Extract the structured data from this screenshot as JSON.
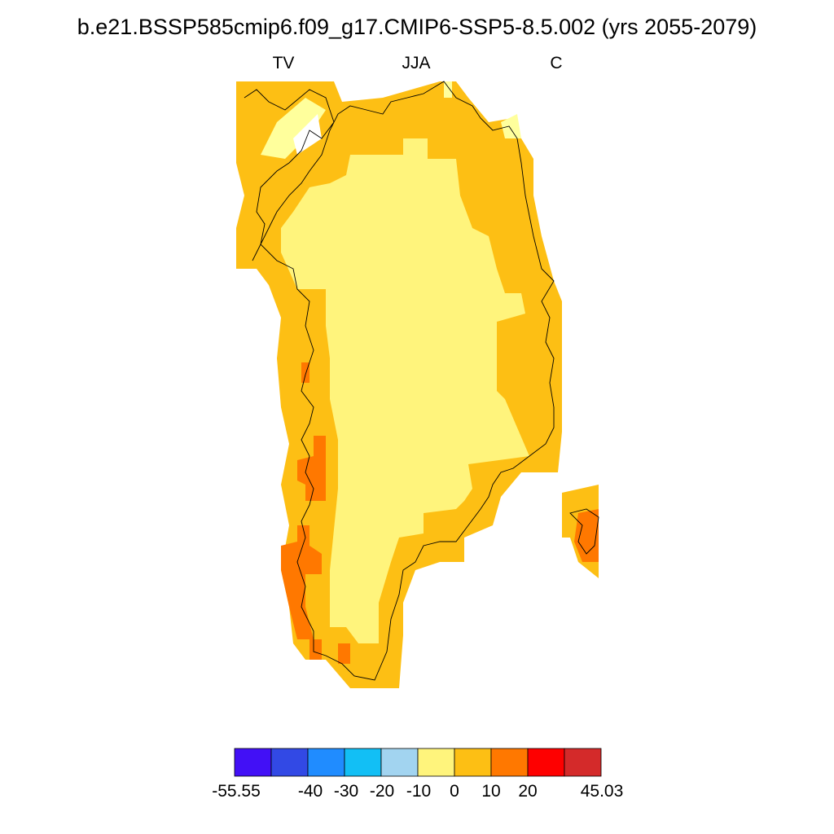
{
  "title": "b.e21.BSSP585cmip6.f09_g17.CMIP6-SSP5-8.5.002 (yrs 2055-2079)",
  "subtitle_left": "TV",
  "subtitle_center": "JJA",
  "subtitle_right": "C",
  "colors": {
    "outer_land": "#fdbf14",
    "interior": "#fff47c",
    "warm": "#ff7800",
    "light": "#ffff9c",
    "coast": "#000000"
  },
  "colorbar": {
    "colors": [
      "#4210f6",
      "#3249e5",
      "#208cff",
      "#12bff5",
      "#a2d4f0",
      "#fff47c",
      "#fdbf14",
      "#ff7800",
      "#fe0000",
      "#d42a2a"
    ],
    "labels": [
      "-55.55",
      "-40",
      "-30",
      "-20",
      "-10",
      "0",
      "10",
      "20",
      "45.03"
    ]
  }
}
